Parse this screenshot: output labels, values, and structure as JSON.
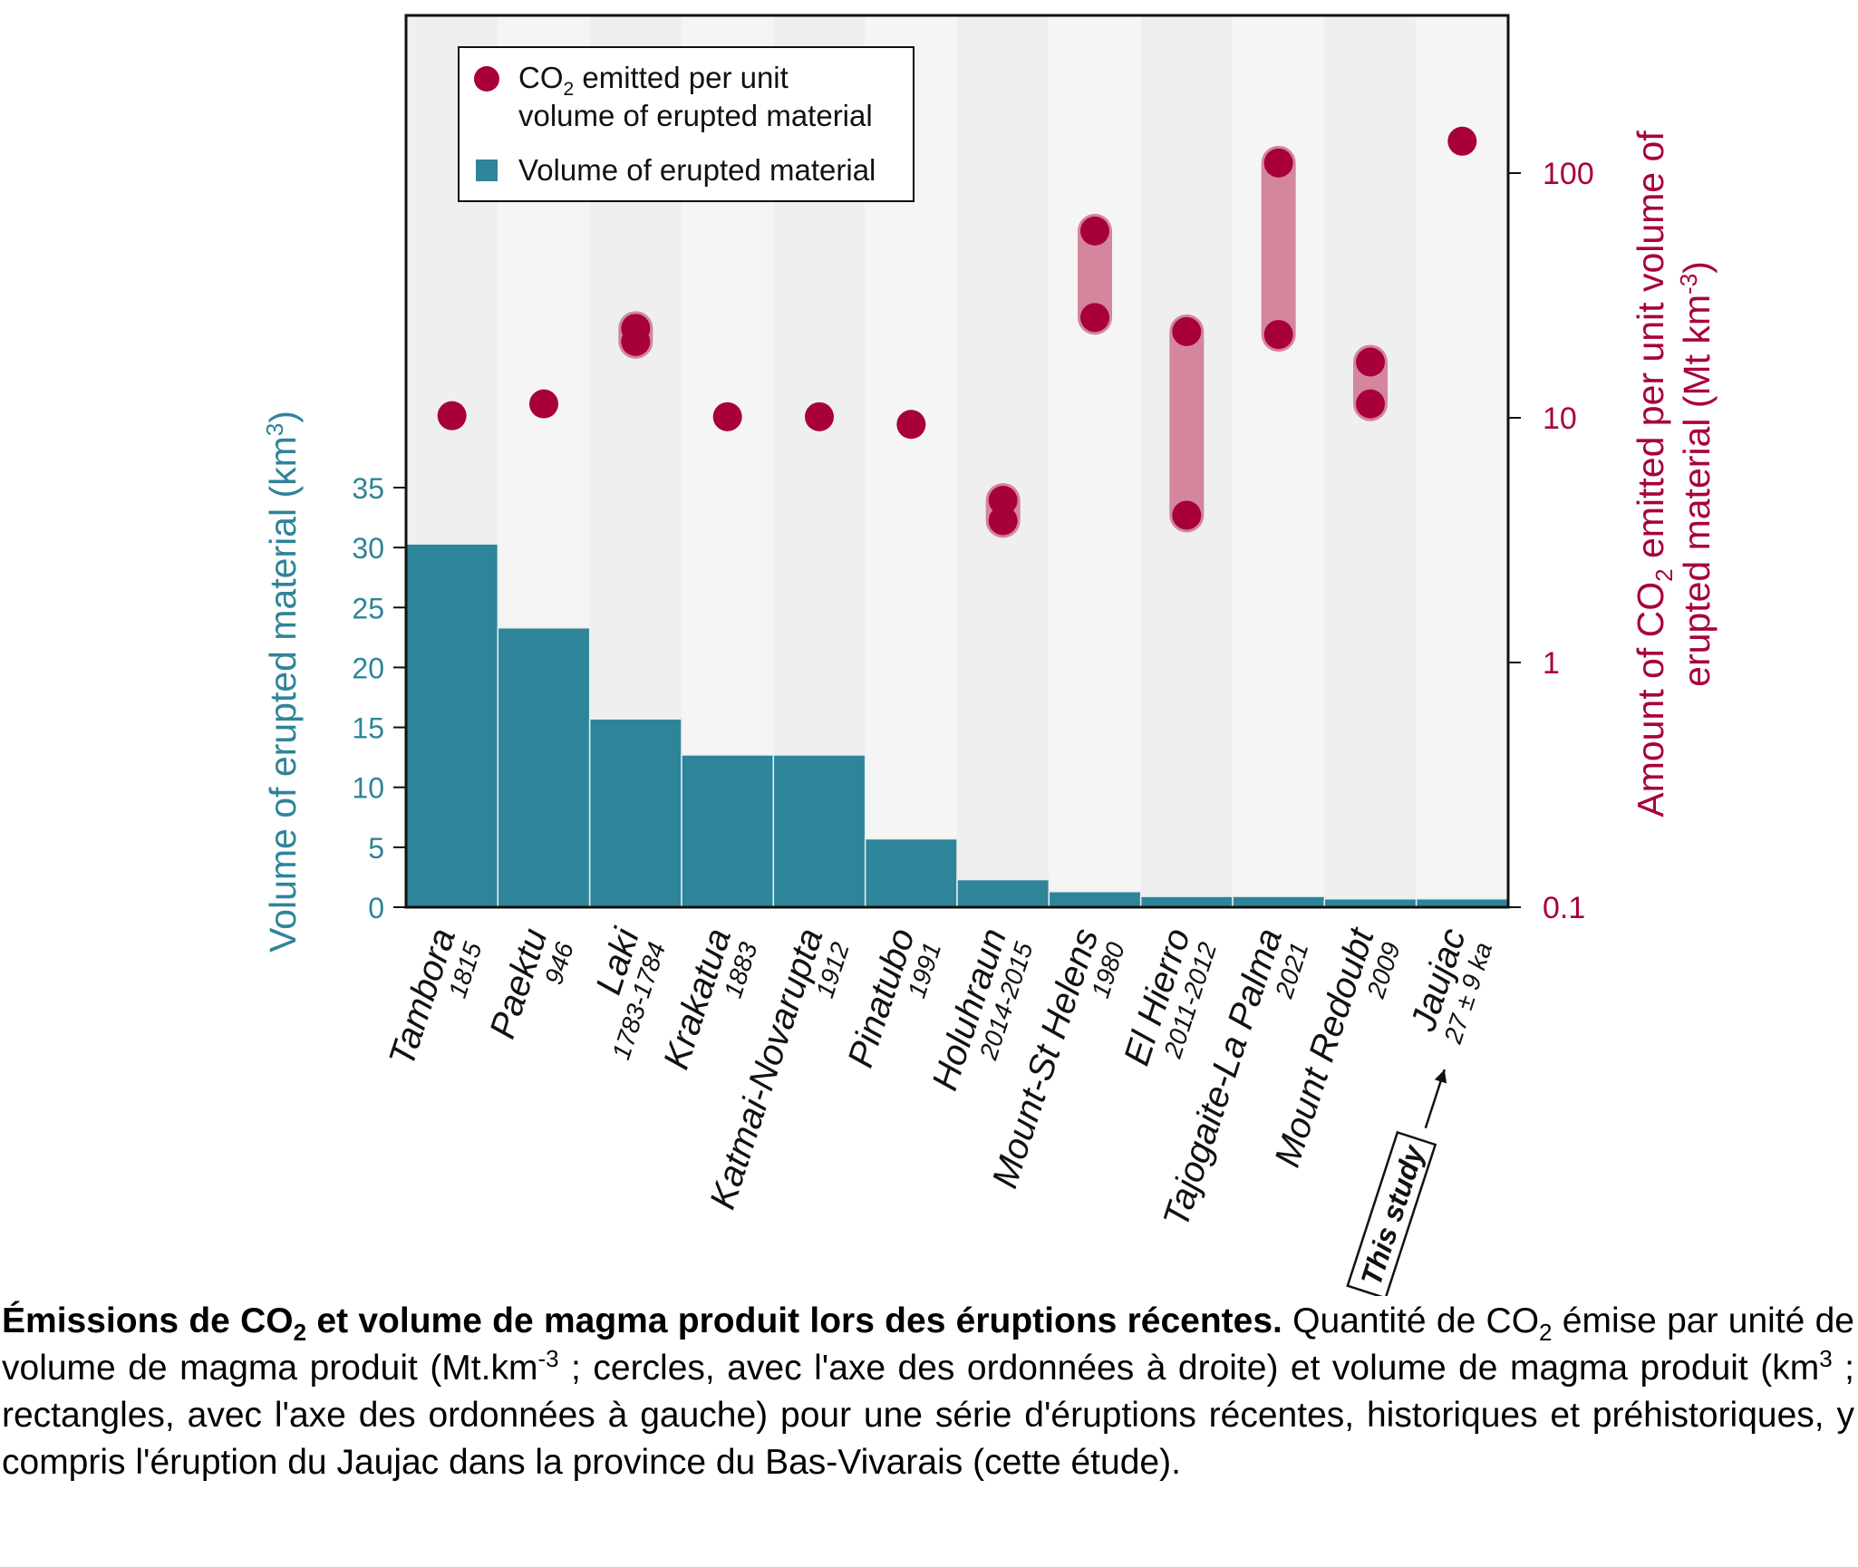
{
  "chart_data": {
    "type": "bar+scatter (dual axis)",
    "categories": [
      "Tambora",
      "Paektu",
      "Laki",
      "Krakatua",
      "Katmai-Novarupta",
      "Pinatubo",
      "Holuhraun",
      "Mount-St Helens",
      "El Hierro",
      "Tajogaite-La Palma",
      "Mount Redoubt",
      "Jaujac"
    ],
    "category_dates": [
      "1815",
      "946",
      "1783-1784",
      "1883",
      "1912",
      "1991",
      "2014-2015",
      "1980",
      "2011-2012",
      "2021",
      "2009",
      "27 ± 9 ka"
    ],
    "series": [
      {
        "name": "Volume of erupted material",
        "axis": "left",
        "kind": "bar",
        "color": "#2e8499",
        "values": [
          30.3,
          23.3,
          15.7,
          12.7,
          12.7,
          5.7,
          2.3,
          1.3,
          0.9,
          0.9,
          0.7,
          0.7
        ]
      },
      {
        "name": "CO2 emitted per unit volume of erupted material",
        "axis": "right",
        "kind": "scatter-range",
        "color": "#a8003a",
        "range_color": "#d4869c",
        "min": [
          10.2,
          11.4,
          20.5,
          10.1,
          10.1,
          9.4,
          3.8,
          25.7,
          4.0,
          21.9,
          11.4,
          135
        ],
        "max": [
          10.2,
          11.4,
          23.2,
          10.1,
          10.1,
          9.4,
          4.6,
          58,
          22.5,
          110,
          16.9,
          135
        ]
      }
    ],
    "left_axis": {
      "label": "Volume of erupted material (km",
      "label_sup": "3",
      "label_end": ")",
      "ylim": [
        0,
        35
      ],
      "ticks": [
        "0",
        "5",
        "10",
        "15",
        "20",
        "25",
        "30",
        "35"
      ]
    },
    "right_axis": {
      "label_line1_pre": "Amount of CO",
      "label_line1_sub": "2",
      "label_line1_post": " emitted per unit volume of",
      "label_line2_pre": "erupted material (Mt km",
      "label_line2_sup": "-3",
      "label_line2_post": ")",
      "scale": "log",
      "ylim": [
        0.1,
        200
      ],
      "ticks": [
        "0.1",
        "1",
        "10",
        "100"
      ]
    },
    "legend": {
      "placement": "top-left",
      "co2_pre": "CO",
      "co2_sub": "2",
      "co2_line1": " emitted per unit",
      "co2_line2": "volume of erupted material",
      "volume": "Volume of erupted material"
    },
    "annotation": "This study",
    "grid": false
  },
  "caption": {
    "title_pre": "Émissions de CO",
    "title_sub": "2",
    "title_post": " et volume de magma produit lors des éruptions récentes.",
    "t1": " Quantité de CO",
    "t1_sub": "2",
    "t2": " émise par unité de volume de magma produit (Mt.km",
    "t2_sup": "-3",
    "t3": " ; cercles, avec l'axe des ordonnées à droite) et volume de magma produit (km",
    "t3_sup": "3",
    "t4": " ; rectangles, avec l'axe des ordonnées à gauche) pour une série d'éruptions récentes, historiques et préhistoriques, y compris l'éruption du Jaujac dans la province du Bas-Vivarais (cette étude)."
  }
}
